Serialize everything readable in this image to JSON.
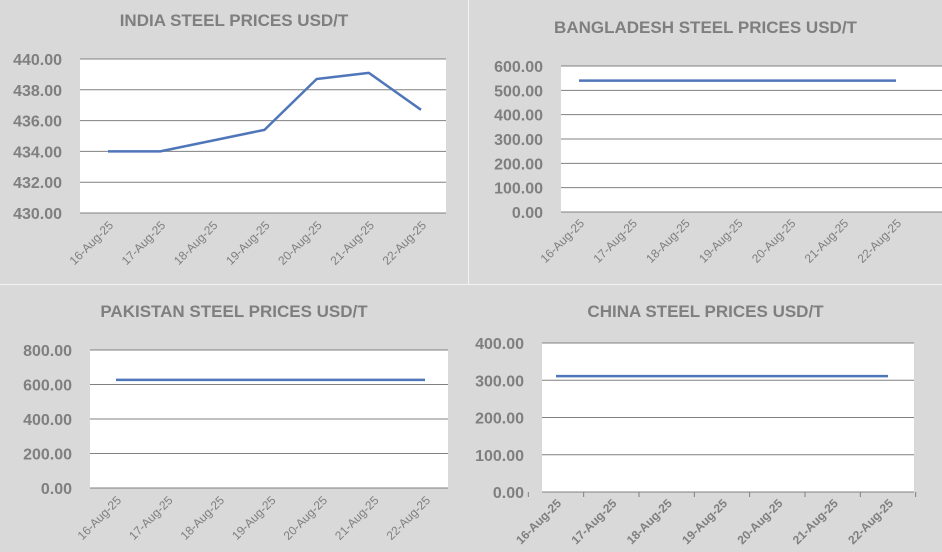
{
  "chart_data": [
    {
      "type": "line",
      "title": "INDIA STEEL PRICES USD/T",
      "categories": [
        "16-Aug-25",
        "17-Aug-25",
        "18-Aug-25",
        "19-Aug-25",
        "20-Aug-25",
        "21-Aug-25",
        "22-Aug-25"
      ],
      "series": [
        {
          "values": [
            434.0,
            434.0,
            434.7,
            435.4,
            438.7,
            439.1,
            436.7
          ]
        }
      ],
      "ylim": [
        430,
        440
      ],
      "yticks": [
        "430.00",
        "432.00",
        "434.00",
        "436.00",
        "438.00",
        "440.00"
      ],
      "line_color": "#4f76b8",
      "grid": true
    },
    {
      "type": "line",
      "title": "BANGLADESH STEEL PRICES USD/T",
      "categories": [
        "16-Aug-25",
        "17-Aug-25",
        "18-Aug-25",
        "19-Aug-25",
        "20-Aug-25",
        "21-Aug-25",
        "22-Aug-25"
      ],
      "series": [
        {
          "values": [
            540,
            540,
            540,
            540,
            540,
            540,
            540
          ]
        }
      ],
      "ylim": [
        0,
        600
      ],
      "yticks": [
        "0.00",
        "100.00",
        "200.00",
        "300.00",
        "400.00",
        "500.00",
        "600.00"
      ],
      "line_color": "#4f76b8",
      "grid": true
    },
    {
      "type": "line",
      "title": "PAKISTAN STEEL PRICES USD/T",
      "categories": [
        "16-Aug-25",
        "17-Aug-25",
        "18-Aug-25",
        "19-Aug-25",
        "20-Aug-25",
        "21-Aug-25",
        "22-Aug-25"
      ],
      "series": [
        {
          "values": [
            627,
            627,
            627,
            627,
            627,
            627,
            627
          ]
        }
      ],
      "ylim": [
        0,
        800
      ],
      "yticks": [
        "0.00",
        "200.00",
        "400.00",
        "600.00",
        "800.00"
      ],
      "line_color": "#4f76b8",
      "grid": true
    },
    {
      "type": "line",
      "title": "CHINA STEEL PRICES USD/T",
      "categories": [
        "16-Aug-25",
        "17-Aug-25",
        "18-Aug-25",
        "19-Aug-25",
        "20-Aug-25",
        "21-Aug-25",
        "22-Aug-25"
      ],
      "series": [
        {
          "values": [
            311,
            311,
            311,
            311,
            311,
            311,
            311
          ]
        }
      ],
      "ylim": [
        0,
        400
      ],
      "yticks": [
        "0.00",
        "100.00",
        "200.00",
        "300.00",
        "400.00"
      ],
      "line_color": "#4f76b8",
      "grid": true
    }
  ]
}
